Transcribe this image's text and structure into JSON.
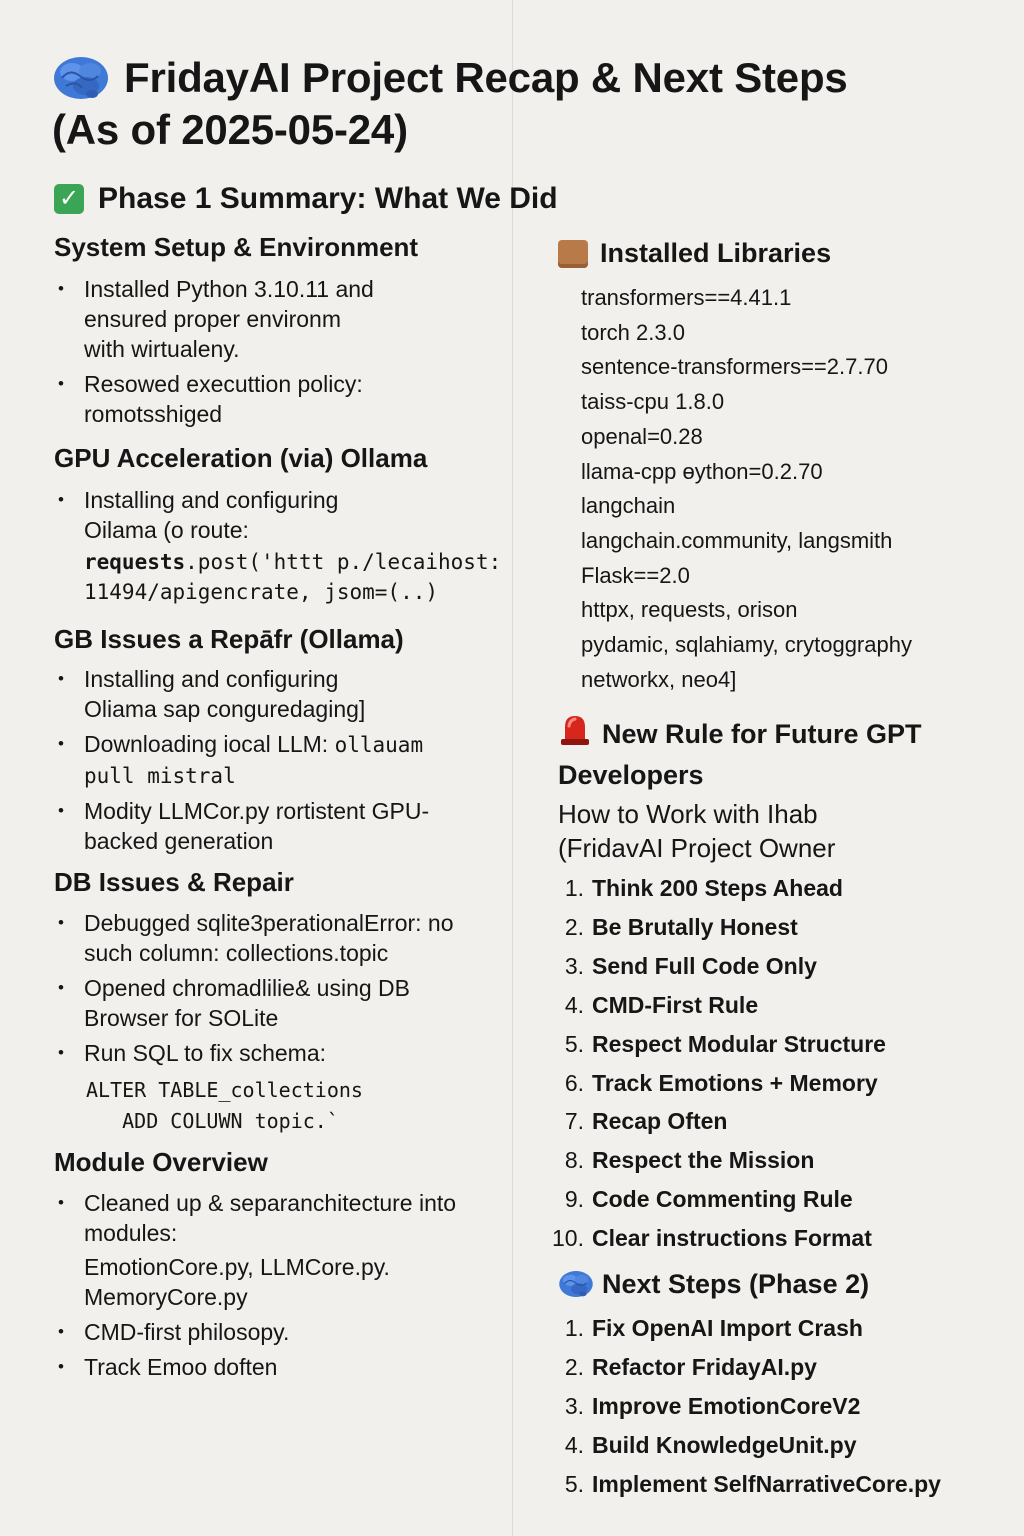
{
  "header": {
    "title_line1": "FridayAI Project Recap & Next Steps",
    "title_line2": "(As of 2025-05-24)",
    "icon": "brain-icon"
  },
  "phase1": {
    "heading": "Phase 1 Summary: What We Did",
    "icon": "check-mark-icon"
  },
  "left": {
    "setup": {
      "title": "System Setup & Environment",
      "items": [
        "Installed Python 3.10.11 and ensured proper environm with wirtualeny.",
        "Resowed executtion  policy: romotsshiged"
      ]
    },
    "gpu": {
      "title": "GPU Acceleration (via)   Ollama",
      "item1": "Installing and configuring Oilama (o route:",
      "code1_bold": "requests",
      "code1_rest": ".post('httt p./lecaihost:",
      "code2": "11494/apigencrate, jsom=(..)"
    },
    "gb": {
      "title": "GB  Issues a Repāfr (Ollama)",
      "item1": "Installing and configuring Oliama sap conguredaging]",
      "item2_text": "Downloading iocal LLM: ",
      "item2_code": "ollauam pull mistral",
      "item3": "Modity LLMCor.py rortistent GPU-backed generation"
    },
    "db": {
      "title": "DB Issues & Repair",
      "items": [
        "Debugged sqlite3perationalError: no such column: collections.topic",
        "Opened chromadlilie& using DB Browser for SOLite",
        "Run SQL to fix schema:"
      ],
      "sql_line1": "ALTER TABLE_collections",
      "sql_line2": "   ADD COLUWN topic.`"
    },
    "modules": {
      "title": "Module Overview",
      "item1": "Cleaned up & separanchitecture into modules:",
      "modules_line1": "EmotionCore.py, LLMCore.py.",
      "modules_line2": "MemoryCore.py",
      "item2": "CMD-first philosopy.",
      "item3": "Track Emoo doften"
    }
  },
  "right": {
    "libraries": {
      "title": "Installed Libraries",
      "icon": "package-icon",
      "items": [
        "transformers==4.41.1",
        "torch 2.3.0",
        "sentence-transformers==2.7.70",
        "taiss-cpu 1.8.0",
        "openal=0.28",
        "llama-cpp ɵython=0.2.70",
        "langchain",
        "langchain.community, langsmith",
        "Flask==2.0",
        "httpx, requests, orison",
        "pydamic, sqlahiamy, crytoggraphy",
        "networkx, neo4]"
      ]
    },
    "rule": {
      "title_line1": "New Rule for Future GPT",
      "title_line2": "Developers",
      "icon": "siren-icon",
      "sub_line1": "How to Work with Ihab",
      "sub_line2": "(FridavAI Project Owner",
      "items": [
        "Think 200 Steps Ahead",
        "Be Brutally Honest",
        "Send Full Code Only",
        "CMD-First Rule",
        "Respect Modular Structure",
        "Track Emotions + Memory",
        "Recap Often",
        "Respect the Mission",
        "Code Commenting Rule",
        "Clear instructions Format"
      ],
      "numbers": [
        "1.",
        "2.",
        "3.",
        "4.",
        "5.",
        "6.",
        "7.",
        "8.",
        "9.",
        "10."
      ]
    },
    "next": {
      "title": "Next Steps (Phase 2)",
      "icon": "brain-icon",
      "items": [
        "Fix OpenAI Import Crash",
        "Refactor FridayAI.py",
        "Improve EmotionCoreV2",
        "Build KnowledgeUnit.py",
        "Implement SelfNarrativeCore.py"
      ],
      "numbers": [
        "1.",
        "2.",
        "3.",
        "4.",
        "5."
      ]
    }
  },
  "colors": {
    "background": "#f1f0ec",
    "text": "#161616",
    "check_green": "#3aa655",
    "brain_blue": "#3f78d6",
    "siren_red": "#d7261e"
  }
}
